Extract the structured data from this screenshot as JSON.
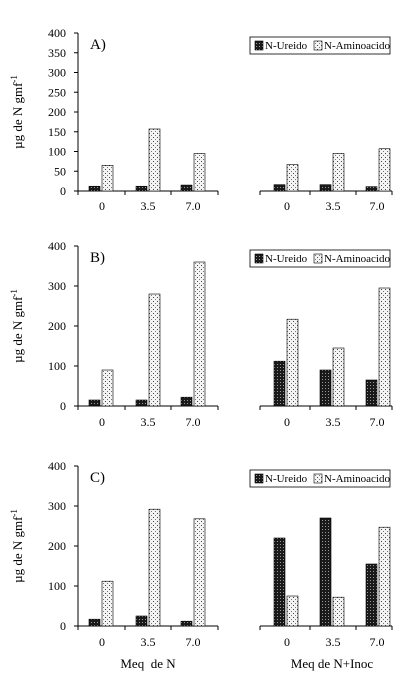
{
  "chart_data": [
    {
      "type": "bar",
      "panel_label": "A)",
      "ylabel": "µg de N gmf",
      "ylabel_superscript": "-1",
      "ylim": [
        0,
        400
      ],
      "yticks": [
        "0",
        "50",
        "100",
        "150",
        "200",
        "250",
        "300",
        "350",
        "400"
      ],
      "categories": [
        "0",
        "3.5",
        "7.0",
        "0",
        "3.5",
        "7.0"
      ],
      "legend_position": "top-right",
      "series": [
        {
          "name": "N-Ureido",
          "values": [
            12,
            12,
            15,
            16,
            16,
            11
          ]
        },
        {
          "name": "N-Aminoacido",
          "values": [
            65,
            157,
            95,
            67,
            95,
            107
          ]
        }
      ]
    },
    {
      "type": "bar",
      "panel_label": "B)",
      "ylabel": "µg de N gmf",
      "ylabel_superscript": "-1",
      "ylim": [
        0,
        400
      ],
      "yticks": [
        "0",
        "100",
        "200",
        "300",
        "400"
      ],
      "categories": [
        "0",
        "3.5",
        "7.0",
        "0",
        "3.5",
        "7.0"
      ],
      "legend_position": "top-right",
      "series": [
        {
          "name": "N-Ureido",
          "values": [
            15,
            15,
            22,
            112,
            90,
            65
          ]
        },
        {
          "name": "N-Aminoacido",
          "values": [
            90,
            280,
            360,
            217,
            145,
            295
          ]
        }
      ]
    },
    {
      "type": "bar",
      "panel_label": "C)",
      "ylabel": "µg de N gmf",
      "ylabel_superscript": "-1",
      "ylim": [
        0,
        400
      ],
      "yticks": [
        "0",
        "100",
        "200",
        "300",
        "400"
      ],
      "categories": [
        "0",
        "3.5",
        "7.0",
        "0",
        "3.5",
        "7.0"
      ],
      "legend_position": "top-right",
      "group_labels": [
        "Meq  de N",
        "Meq de N+Inoc"
      ],
      "series": [
        {
          "name": "N-Ureido",
          "values": [
            17,
            25,
            12,
            220,
            270,
            155
          ]
        },
        {
          "name": "N-Aminoacido",
          "values": [
            112,
            292,
            268,
            75,
            72,
            247
          ]
        }
      ]
    }
  ],
  "colors": {
    "ureido_fill": "#1a1a1a",
    "aminoacido_fill": "#f2f2f2",
    "axis": "#000000"
  }
}
